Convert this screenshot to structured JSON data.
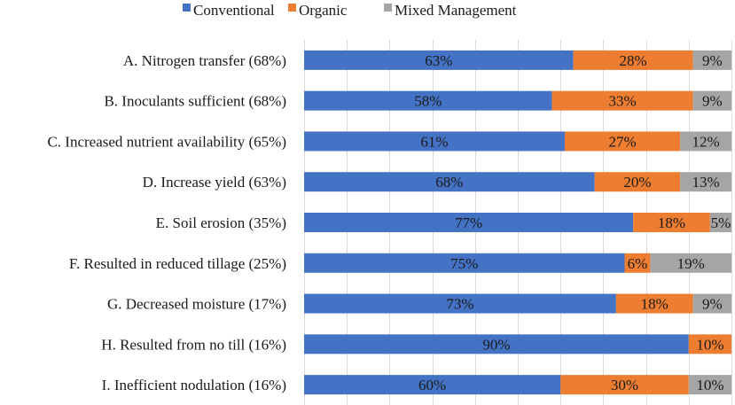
{
  "chart_data": {
    "type": "bar",
    "orientation": "horizontal",
    "stacked": true,
    "normalized_percent": true,
    "title": "",
    "xlabel": "",
    "ylabel": "",
    "xlim": [
      0,
      100
    ],
    "grid": true,
    "legend_position": "top",
    "categories": [
      "A. Nitrogen transfer (68%)",
      "B. Inoculants sufficient (68%)",
      "C. Increased nutrient availability (65%)",
      "D. Increase yield (63%)",
      "E. Soil erosion (35%)",
      "F. Resulted in reduced tillage (25%)",
      "G. Decreased moisture (17%)",
      "H. Resulted from no till (16%)",
      "I. Inefficient nodulation (16%)"
    ],
    "series": [
      {
        "name": "Conventional",
        "color": "#4472C4",
        "values": [
          63,
          58,
          61,
          68,
          77,
          75,
          73,
          90,
          60
        ],
        "labels": [
          "63%",
          "58%",
          "61%",
          "68%",
          "77%",
          "75%",
          "73%",
          "90%",
          "60%"
        ]
      },
      {
        "name": "Organic",
        "color": "#ED7D31",
        "values": [
          28,
          33,
          27,
          20,
          18,
          6,
          18,
          10,
          30
        ],
        "labels": [
          "28%",
          "33%",
          "27%",
          "20%",
          "18%",
          "6%",
          "18%",
          "10%",
          "30%"
        ]
      },
      {
        "name": "Mixed Management",
        "color": "#A5A5A5",
        "values": [
          9,
          9,
          12,
          13,
          5,
          19,
          9,
          0,
          10
        ],
        "labels": [
          "9%",
          "9%",
          "12%",
          "13%",
          "5%",
          "19%",
          "9%",
          "",
          "10%"
        ]
      }
    ]
  }
}
